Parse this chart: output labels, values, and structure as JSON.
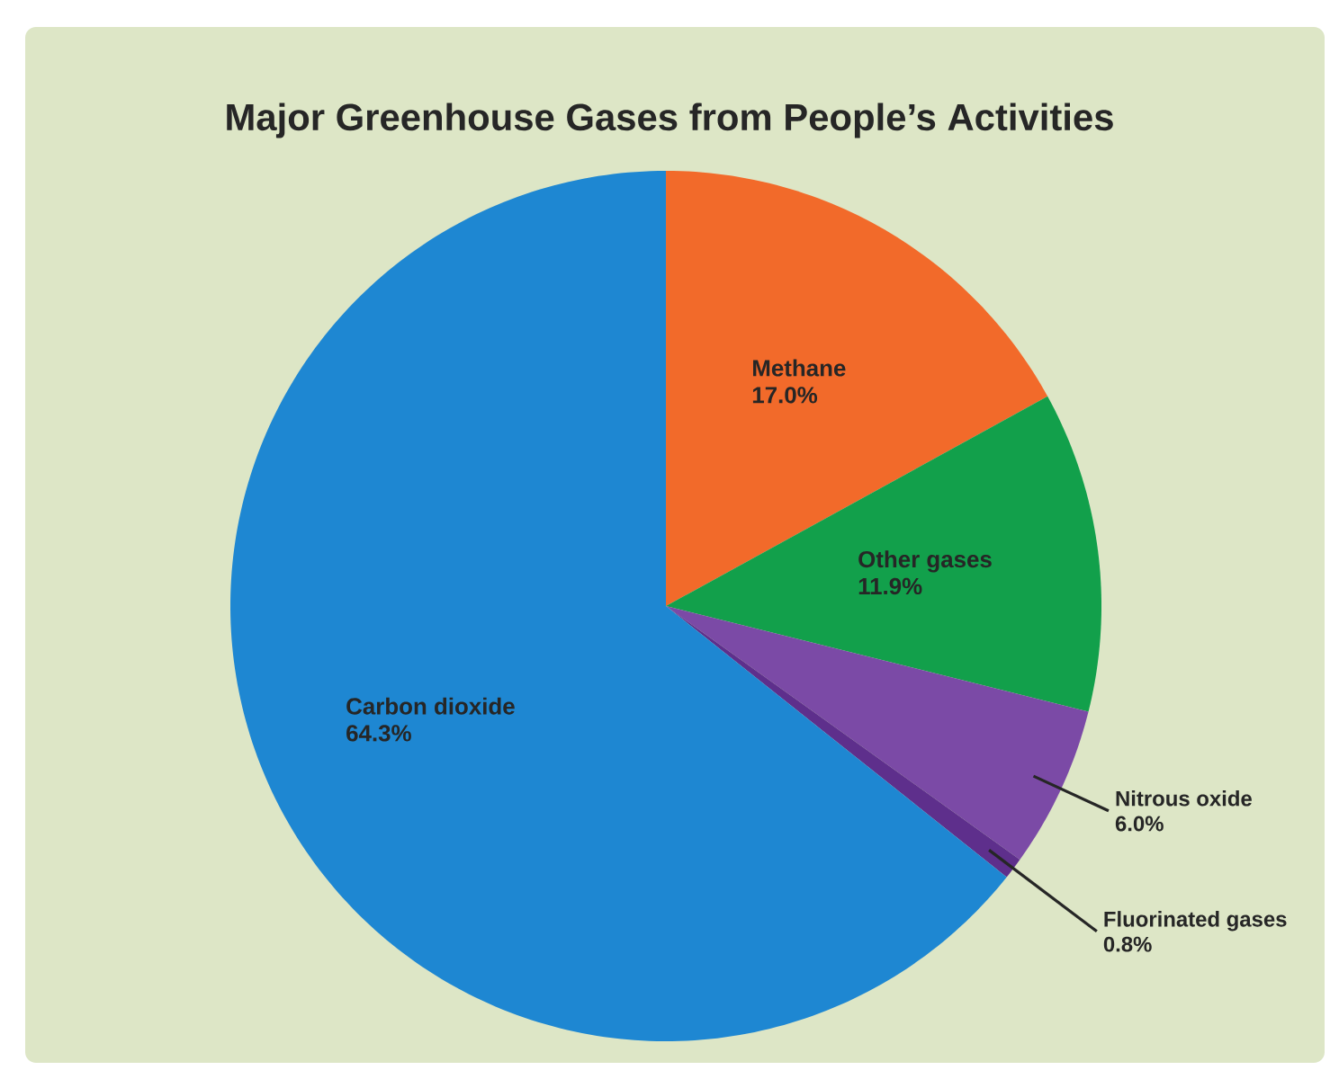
{
  "chart_data": {
    "type": "pie",
    "title": "Major Greenhouse Gases from People’s Activities",
    "categories": [
      "Methane",
      "Other gases",
      "Nitrous oxide",
      "Fluorinated gases",
      "Carbon dioxide"
    ],
    "values": [
      17.0,
      11.9,
      6.0,
      0.8,
      64.3
    ],
    "value_labels": [
      "17.0%",
      "11.9%",
      "6.0%",
      "0.8%",
      "64.3%"
    ],
    "colors": [
      "#f26a2a",
      "#12a04b",
      "#7b4aa6",
      "#5e2f8c",
      "#1e87d2"
    ]
  }
}
